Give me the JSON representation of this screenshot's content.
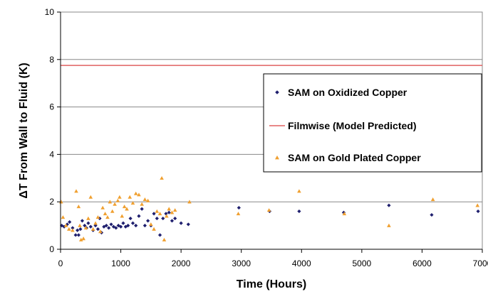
{
  "chart_data": {
    "type": "scatter",
    "title": "",
    "xlabel": "Time (Hours)",
    "ylabel": "ΔT From Wall to Fluid (K)",
    "xlim": [
      0,
      7000
    ],
    "ylim": [
      0,
      10
    ],
    "x_ticks": [
      "0",
      "1000",
      "2000",
      "3000",
      "4000",
      "5000",
      "6000",
      "7000"
    ],
    "y_ticks": [
      "0",
      "2",
      "4",
      "6",
      "8",
      "10"
    ],
    "grid": "horizontal",
    "legend_position": "right",
    "series": [
      {
        "name": "SAM on Oxidized Copper",
        "kind": "scatter",
        "marker": "diamond",
        "color": "#1f1f6e",
        "points": [
          [
            20,
            1.0
          ],
          [
            60,
            0.95
          ],
          [
            110,
            1.05
          ],
          [
            150,
            1.15
          ],
          [
            200,
            0.9
          ],
          [
            250,
            0.6
          ],
          [
            280,
            0.8
          ],
          [
            300,
            0.6
          ],
          [
            330,
            0.85
          ],
          [
            360,
            1.2
          ],
          [
            400,
            1.0
          ],
          [
            430,
            0.9
          ],
          [
            460,
            1.1
          ],
          [
            500,
            0.95
          ],
          [
            540,
            0.8
          ],
          [
            580,
            1.0
          ],
          [
            620,
            0.85
          ],
          [
            650,
            1.3
          ],
          [
            680,
            0.7
          ],
          [
            720,
            0.95
          ],
          [
            760,
            1.0
          ],
          [
            800,
            0.9
          ],
          [
            840,
            1.05
          ],
          [
            880,
            0.95
          ],
          [
            920,
            0.9
          ],
          [
            960,
            1.0
          ],
          [
            1000,
            0.95
          ],
          [
            1040,
            1.1
          ],
          [
            1080,
            0.95
          ],
          [
            1120,
            1.0
          ],
          [
            1160,
            1.3
          ],
          [
            1200,
            1.1
          ],
          [
            1250,
            1.0
          ],
          [
            1300,
            1.4
          ],
          [
            1350,
            1.7
          ],
          [
            1400,
            1.0
          ],
          [
            1450,
            1.2
          ],
          [
            1500,
            1.0
          ],
          [
            1550,
            1.5
          ],
          [
            1600,
            1.3
          ],
          [
            1650,
            0.6
          ],
          [
            1700,
            1.3
          ],
          [
            1750,
            1.5
          ],
          [
            1800,
            1.55
          ],
          [
            1850,
            1.2
          ],
          [
            1900,
            1.3
          ],
          [
            2000,
            1.1
          ],
          [
            2120,
            1.05
          ],
          [
            2960,
            1.75
          ],
          [
            3470,
            1.6
          ],
          [
            3960,
            1.6
          ],
          [
            4700,
            1.55
          ],
          [
            5450,
            1.85
          ],
          [
            6160,
            1.45
          ],
          [
            6930,
            1.6
          ]
        ]
      },
      {
        "name": "Filmwise (Model Predicted)",
        "kind": "line",
        "color": "#e06060",
        "points": [
          [
            0,
            7.75
          ],
          [
            7000,
            7.75
          ]
        ]
      },
      {
        "name": "SAM on Gold Plated Copper",
        "kind": "scatter",
        "marker": "triangle",
        "color": "#f0a030",
        "points": [
          [
            10,
            2.0
          ],
          [
            40,
            1.35
          ],
          [
            90,
            1.0
          ],
          [
            140,
            0.85
          ],
          [
            200,
            0.8
          ],
          [
            260,
            2.45
          ],
          [
            300,
            1.8
          ],
          [
            320,
            1.0
          ],
          [
            340,
            0.4
          ],
          [
            380,
            0.45
          ],
          [
            420,
            0.9
          ],
          [
            460,
            1.3
          ],
          [
            500,
            2.2
          ],
          [
            540,
            0.85
          ],
          [
            580,
            1.1
          ],
          [
            620,
            1.35
          ],
          [
            660,
            0.75
          ],
          [
            700,
            1.75
          ],
          [
            740,
            1.5
          ],
          [
            780,
            1.35
          ],
          [
            820,
            2.0
          ],
          [
            860,
            1.6
          ],
          [
            900,
            1.9
          ],
          [
            950,
            2.05
          ],
          [
            980,
            2.2
          ],
          [
            1020,
            1.4
          ],
          [
            1060,
            1.8
          ],
          [
            1100,
            1.7
          ],
          [
            1150,
            2.2
          ],
          [
            1200,
            1.95
          ],
          [
            1250,
            2.35
          ],
          [
            1300,
            2.3
          ],
          [
            1350,
            1.9
          ],
          [
            1400,
            2.1
          ],
          [
            1450,
            2.05
          ],
          [
            1500,
            1.05
          ],
          [
            1550,
            0.85
          ],
          [
            1600,
            1.6
          ],
          [
            1650,
            1.5
          ],
          [
            1680,
            3.0
          ],
          [
            1720,
            0.4
          ],
          [
            1760,
            1.4
          ],
          [
            1800,
            1.7
          ],
          [
            1850,
            1.55
          ],
          [
            1900,
            1.65
          ],
          [
            2140,
            2.0
          ],
          [
            2950,
            1.5
          ],
          [
            3460,
            1.65
          ],
          [
            3960,
            2.45
          ],
          [
            4710,
            1.5
          ],
          [
            5450,
            1.0
          ],
          [
            6180,
            2.1
          ],
          [
            6920,
            1.85
          ]
        ]
      }
    ]
  }
}
